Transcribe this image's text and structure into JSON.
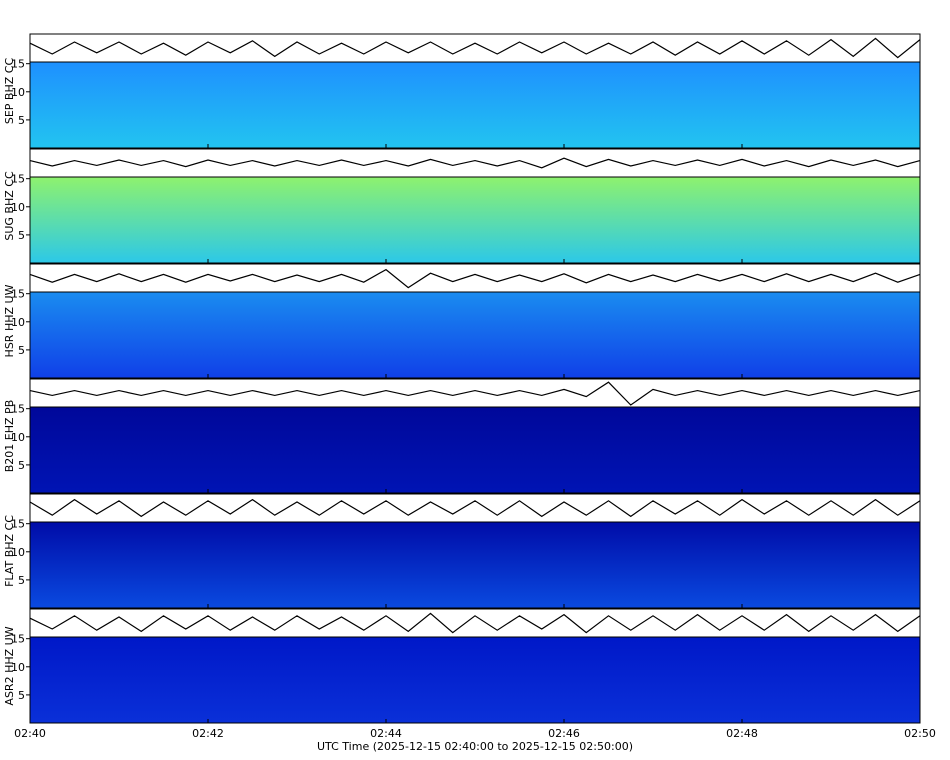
{
  "chart_data": {
    "type": "seismogram_stack",
    "xlabel": "UTC Time (2025-12-15 02:40:00 to 2025-12-15 02:50:00)",
    "xlim": [
      0,
      10
    ],
    "xticks": [
      {
        "value": 0,
        "label": "02:40"
      },
      {
        "value": 2,
        "label": "02:42"
      },
      {
        "value": 4,
        "label": "02:44"
      },
      {
        "value": 6,
        "label": "02:46"
      },
      {
        "value": 8,
        "label": "02:48"
      },
      {
        "value": 10,
        "label": "02:50"
      }
    ],
    "x": [
      0,
      0.25,
      0.5,
      0.75,
      1,
      1.25,
      1.5,
      1.75,
      2,
      2.25,
      2.5,
      2.75,
      3,
      3.25,
      3.5,
      3.75,
      4,
      4.25,
      4.5,
      4.75,
      5,
      5.25,
      5.5,
      5.75,
      6,
      6.25,
      6.5,
      6.75,
      7,
      7.25,
      7.5,
      7.75,
      8,
      8.25,
      8.5,
      8.75,
      9,
      9.25,
      9.5,
      9.75,
      10
    ],
    "panels": [
      {
        "name": "SEP BHZ CC",
        "waveform": {
          "color": "#000000",
          "ylim": [
            -1,
            1
          ],
          "values": [
            0.4,
            -0.5,
            0.5,
            -0.4,
            0.5,
            -0.5,
            0.4,
            -0.6,
            0.5,
            -0.4,
            0.6,
            -0.7,
            0.5,
            -0.5,
            0.4,
            -0.5,
            0.5,
            -0.4,
            0.5,
            -0.5,
            0.4,
            -0.5,
            0.5,
            -0.4,
            0.5,
            -0.5,
            0.4,
            -0.5,
            0.5,
            -0.6,
            0.5,
            -0.5,
            0.6,
            -0.5,
            0.6,
            -0.6,
            0.7,
            -0.7,
            0.8,
            -0.8,
            0.7
          ]
        },
        "spectrogram": {
          "ylim": [
            0,
            15.3
          ],
          "yticks": [
            5,
            10,
            15
          ],
          "colors": [
            "#1e90ff",
            "#22c4f0"
          ]
        }
      },
      {
        "name": "SUG BHZ CC",
        "waveform": {
          "color": "#000000",
          "ylim": [
            -1,
            1
          ],
          "values": [
            0.2,
            -0.25,
            0.2,
            -0.2,
            0.25,
            -0.2,
            0.2,
            -0.3,
            0.25,
            -0.2,
            0.2,
            -0.25,
            0.2,
            -0.2,
            0.25,
            -0.2,
            0.2,
            -0.25,
            0.3,
            -0.2,
            0.2,
            -0.25,
            0.2,
            -0.4,
            0.4,
            -0.3,
            0.3,
            -0.25,
            0.2,
            -0.2,
            0.25,
            -0.2,
            0.3,
            -0.25,
            0.2,
            -0.3,
            0.25,
            -0.2,
            0.25,
            -0.3,
            0.2
          ]
        },
        "spectrogram": {
          "ylim": [
            0,
            15.3
          ],
          "yticks": [
            5,
            10,
            15
          ],
          "colors": [
            "#8ef26e",
            "#2cc8e8"
          ]
        }
      },
      {
        "name": "HSR HHZ UW",
        "waveform": {
          "color": "#000000",
          "ylim": [
            -1,
            1
          ],
          "values": [
            0.3,
            -0.35,
            0.3,
            -0.3,
            0.35,
            -0.3,
            0.3,
            -0.35,
            0.3,
            -0.25,
            0.3,
            -0.3,
            0.25,
            -0.3,
            0.3,
            -0.35,
            0.7,
            -0.8,
            0.4,
            -0.3,
            0.3,
            -0.3,
            0.25,
            -0.3,
            0.35,
            -0.4,
            0.3,
            -0.3,
            0.25,
            -0.3,
            0.3,
            -0.25,
            0.3,
            -0.3,
            0.35,
            -0.3,
            0.3,
            -0.3,
            0.4,
            -0.35,
            0.3
          ]
        },
        "spectrogram": {
          "ylim": [
            0,
            15.3
          ],
          "yticks": [
            5,
            10,
            15
          ],
          "colors": [
            "#1a8cf0",
            "#1040e8"
          ]
        }
      },
      {
        "name": "B201 EHZ PB",
        "waveform": {
          "color": "#000000",
          "ylim": [
            -1,
            1
          ],
          "values": [
            0.2,
            -0.2,
            0.2,
            -0.2,
            0.2,
            -0.2,
            0.2,
            -0.2,
            0.2,
            -0.2,
            0.2,
            -0.2,
            0.2,
            -0.2,
            0.2,
            -0.2,
            0.2,
            -0.2,
            0.2,
            -0.2,
            0.2,
            -0.2,
            0.2,
            -0.2,
            0.3,
            -0.3,
            0.9,
            -1,
            0.3,
            -0.2,
            0.2,
            -0.2,
            0.2,
            -0.2,
            0.2,
            -0.2,
            0.2,
            -0.2,
            0.2,
            -0.2,
            0.2
          ]
        },
        "spectrogram": {
          "ylim": [
            0,
            15.3
          ],
          "yticks": [
            5,
            10,
            15
          ],
          "colors": [
            "#00089a",
            "#0014b4"
          ]
        }
      },
      {
        "name": "FLAT BHZ CC",
        "waveform": {
          "color": "#000000",
          "ylim": [
            -1,
            1
          ],
          "values": [
            0.5,
            -0.6,
            0.7,
            -0.5,
            0.6,
            -0.7,
            0.5,
            -0.6,
            0.6,
            -0.5,
            0.7,
            -0.6,
            0.5,
            -0.6,
            0.6,
            -0.5,
            0.6,
            -0.6,
            0.5,
            -0.5,
            0.6,
            -0.6,
            0.6,
            -0.7,
            0.5,
            -0.6,
            0.6,
            -0.7,
            0.6,
            -0.5,
            0.6,
            -0.6,
            0.7,
            -0.5,
            0.6,
            -0.6,
            0.6,
            -0.6,
            0.7,
            -0.6,
            0.6
          ]
        },
        "spectrogram": {
          "ylim": [
            0,
            15.3
          ],
          "yticks": [
            5,
            10,
            15
          ],
          "colors": [
            "#000ca8",
            "#0a4ae0"
          ]
        }
      },
      {
        "name": "ASR2 HHZ UW",
        "waveform": {
          "color": "#000000",
          "ylim": [
            -1,
            1
          ],
          "values": [
            0.4,
            -0.5,
            0.6,
            -0.6,
            0.5,
            -0.7,
            0.6,
            -0.5,
            0.6,
            -0.6,
            0.5,
            -0.6,
            0.6,
            -0.5,
            0.5,
            -0.6,
            0.6,
            -0.7,
            0.8,
            -0.8,
            0.6,
            -0.6,
            0.6,
            -0.5,
            0.7,
            -0.8,
            0.6,
            -0.6,
            0.6,
            -0.6,
            0.7,
            -0.6,
            0.6,
            -0.6,
            0.7,
            -0.7,
            0.6,
            -0.6,
            0.7,
            -0.7,
            0.6
          ]
        },
        "spectrogram": {
          "ylim": [
            0,
            15.3
          ],
          "yticks": [
            5,
            10,
            15
          ],
          "colors": [
            "#0018c8",
            "#0a30d8"
          ]
        }
      }
    ]
  }
}
